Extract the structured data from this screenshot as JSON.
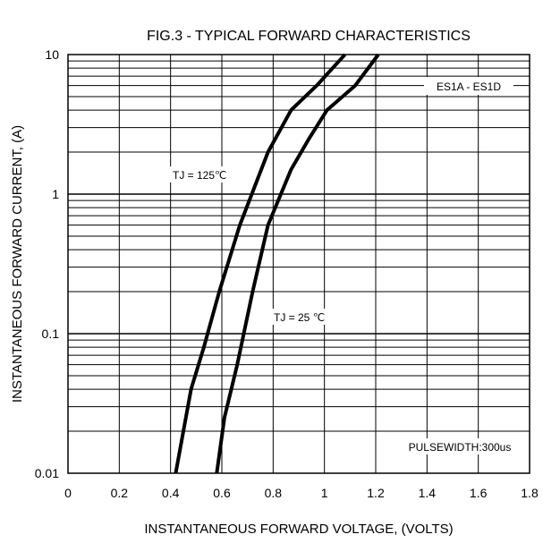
{
  "chart_data": {
    "type": "line",
    "title": "FIG.3 - TYPICAL FORWARD CHARACTERISTICS",
    "xlabel": "INSTANTANEOUS FORWARD VOLTAGE, (VOLTS)",
    "ylabel": "INSTANTANEOUS  FORWARD CURRENT, (A)",
    "xlim": [
      0,
      1.8
    ],
    "ylim": [
      0.01,
      10
    ],
    "yscale": "log",
    "grid": true,
    "x_ticks": [
      "0",
      "0.2",
      "0.4",
      "0.6",
      "0.8",
      "1",
      "1.2",
      "1.4",
      "1.6",
      "1.8"
    ],
    "y_ticks": [
      "0.01",
      "0.1",
      "1",
      "10"
    ],
    "series": [
      {
        "name": "TJ = 125℃",
        "points": [
          [
            0.42,
            0.01
          ],
          [
            0.45,
            0.02
          ],
          [
            0.48,
            0.04
          ],
          [
            0.53,
            0.08
          ],
          [
            0.59,
            0.2
          ],
          [
            0.67,
            0.6
          ],
          [
            0.78,
            2.0
          ],
          [
            0.87,
            4.0
          ],
          [
            0.97,
            6.0
          ],
          [
            1.08,
            10.0
          ]
        ]
      },
      {
        "name": "TJ = 25 ℃",
        "points": [
          [
            0.58,
            0.01
          ],
          [
            0.61,
            0.025
          ],
          [
            0.66,
            0.06
          ],
          [
            0.72,
            0.2
          ],
          [
            0.78,
            0.6
          ],
          [
            0.87,
            1.5
          ],
          [
            0.94,
            2.5
          ],
          [
            1.01,
            4.0
          ],
          [
            1.12,
            6.0
          ],
          [
            1.21,
            10.0
          ]
        ]
      }
    ],
    "annotations": [
      "ES1A - ES1D",
      "PULSEWIDTH:300us"
    ]
  }
}
